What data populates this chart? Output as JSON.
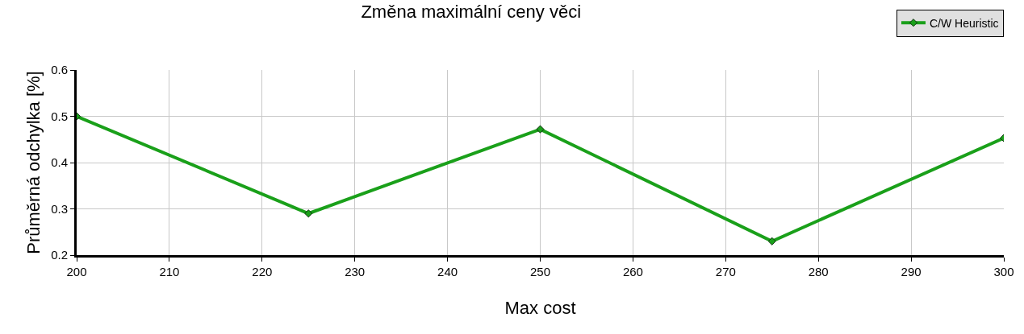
{
  "chart_data": {
    "type": "line",
    "title": "Změna maximální ceny věci",
    "xlabel": "Max cost",
    "ylabel": "Průměrná odchylka [%]",
    "x": [
      200,
      225,
      250,
      275,
      300
    ],
    "series": [
      {
        "name": "C/W Heuristic",
        "color": "#1aa01a",
        "values": [
          0.5,
          0.29,
          0.472,
          0.23,
          0.453
        ]
      }
    ],
    "xlim": [
      200,
      300
    ],
    "xticks": [
      200,
      210,
      220,
      230,
      240,
      250,
      260,
      270,
      280,
      290,
      300
    ],
    "ylim": [
      0.2,
      0.6
    ],
    "yticks": [
      0.2,
      0.3,
      0.4,
      0.5,
      0.6
    ],
    "grid": true,
    "legend": "top right",
    "marker": "diamond",
    "line_style": "solid"
  }
}
